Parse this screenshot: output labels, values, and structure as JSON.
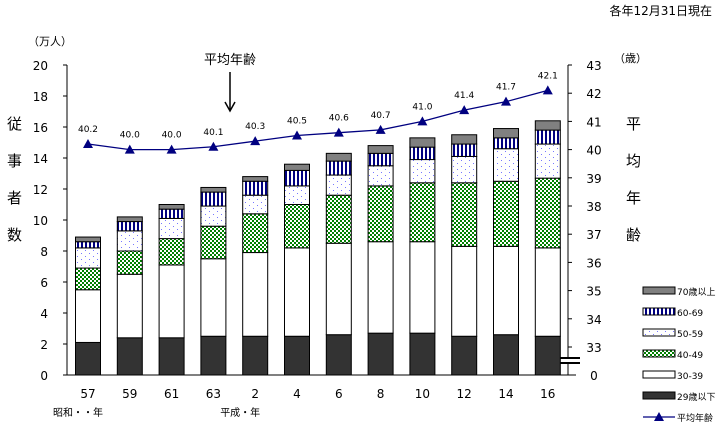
{
  "chart_data": {
    "type": "bar",
    "subtype": "stacked-bar-with-line",
    "date_note": "各年12月31日現在",
    "left_unit": "（万人）",
    "left_ylabel": "従事者数",
    "right_unit": "（歳）",
    "right_ylabel": "平均年齢",
    "annotation": "平均年齢",
    "categories": [
      "57",
      "59",
      "61",
      "63",
      "2",
      "4",
      "6",
      "8",
      "10",
      "12",
      "14",
      "16"
    ],
    "era_labels": [
      {
        "text": "昭和・・年",
        "at": "57"
      },
      {
        "text": "平成・年",
        "at": "2"
      }
    ],
    "left_ylim": [
      0,
      20
    ],
    "left_ticks": [
      "0",
      "2",
      "4",
      "6",
      "8",
      "10",
      "12",
      "14",
      "16",
      "18",
      "20"
    ],
    "right_ylim": [
      33,
      43
    ],
    "right_ticks": [
      "0",
      "33",
      "34",
      "35",
      "36",
      "37",
      "38",
      "39",
      "40",
      "41",
      "42",
      "43"
    ],
    "series": [
      {
        "name": "29歳以下",
        "color": "#333333",
        "values": [
          2.1,
          2.4,
          2.4,
          2.5,
          2.5,
          2.5,
          2.6,
          2.7,
          2.7,
          2.5,
          2.6,
          2.5
        ]
      },
      {
        "name": "30-39",
        "color": "#ffffff",
        "values": [
          3.4,
          4.1,
          4.7,
          5.0,
          5.4,
          5.7,
          5.9,
          5.9,
          5.9,
          5.8,
          5.7,
          5.7
        ]
      },
      {
        "name": "40-49",
        "color": "#008000",
        "values": [
          1.4,
          1.5,
          1.7,
          2.1,
          2.5,
          2.8,
          3.1,
          3.6,
          3.8,
          4.1,
          4.2,
          4.5
        ]
      },
      {
        "name": "50-59",
        "color": "#9999ff",
        "values": [
          1.3,
          1.3,
          1.3,
          1.3,
          1.2,
          1.2,
          1.3,
          1.3,
          1.5,
          1.7,
          2.1,
          2.2
        ]
      },
      {
        "name": "60-69",
        "color": "#000080",
        "values": [
          0.4,
          0.6,
          0.6,
          0.9,
          0.9,
          1.0,
          0.9,
          0.8,
          0.8,
          0.8,
          0.7,
          0.9
        ]
      },
      {
        "name": "70歳以上",
        "color": "#808080",
        "values": [
          0.3,
          0.3,
          0.3,
          0.3,
          0.3,
          0.4,
          0.5,
          0.5,
          0.6,
          0.6,
          0.6,
          0.6
        ]
      }
    ],
    "line": {
      "name": "平均年齢",
      "color": "#000080",
      "axis": "right",
      "values": [
        40.2,
        40.0,
        40.0,
        40.1,
        40.3,
        40.5,
        40.6,
        40.7,
        41.0,
        41.4,
        41.7,
        42.1
      ],
      "labels": [
        "40.2",
        "40.0",
        "40.0",
        "40.1",
        "40.3",
        "40.5",
        "40.6",
        "40.7",
        "41.0",
        "41.4",
        "41.7",
        "42.1"
      ]
    },
    "legend_order": [
      "70歳以上",
      "60-69",
      "50-59",
      "40-49",
      "30-39",
      "29歳以下",
      "平均年齢"
    ],
    "legend_position": "bottom-right",
    "grid": false
  }
}
